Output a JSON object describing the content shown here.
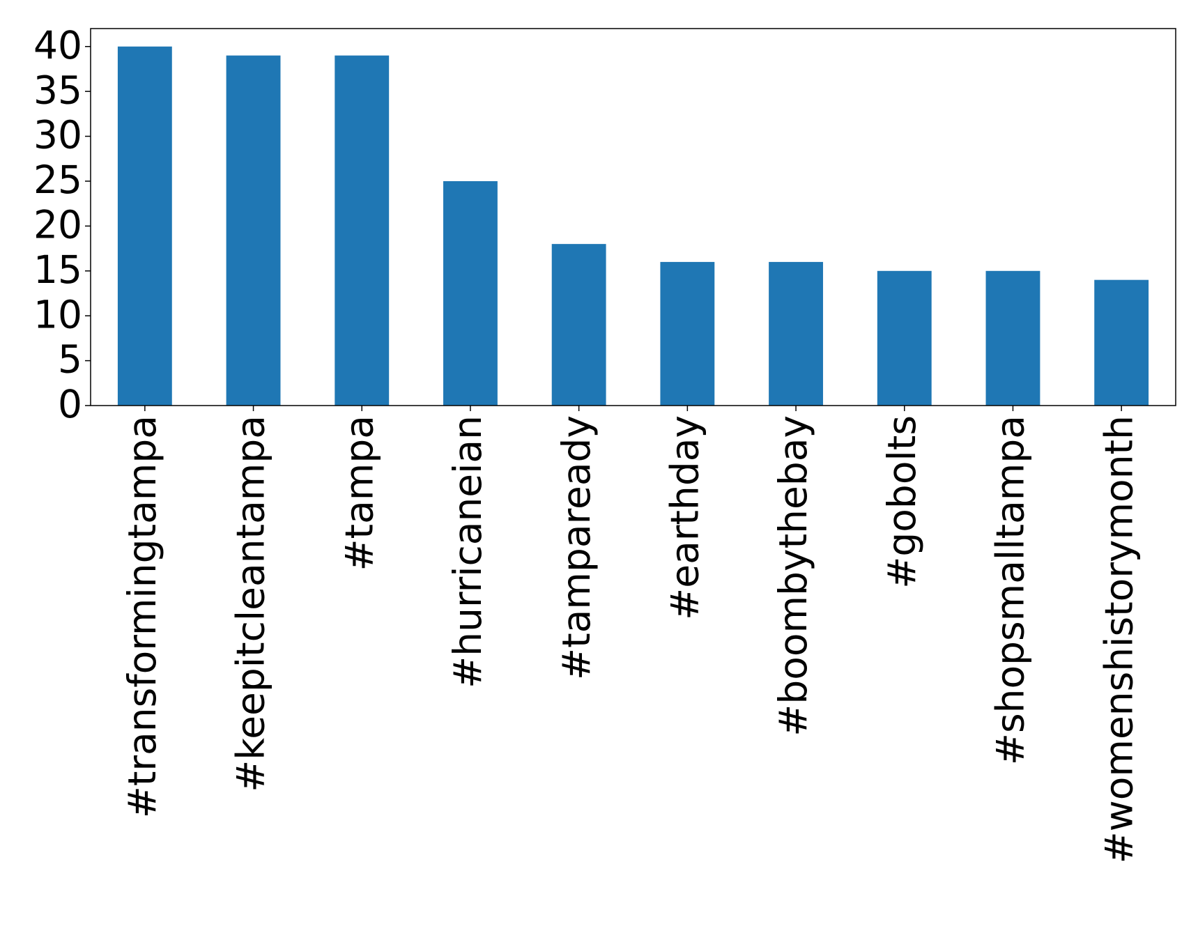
{
  "chart_data": {
    "type": "bar",
    "categories": [
      "#transformingtampa",
      "#keepitcleantampa",
      "#tampa",
      "#hurricaneian",
      "#tampaready",
      "#earthday",
      "#boombythebay",
      "#gobolts",
      "#shopsmalltampa",
      "#womenshistorymonth"
    ],
    "values": [
      40,
      39,
      39,
      25,
      18,
      16,
      16,
      15,
      15,
      14
    ],
    "color": "#1f77b4",
    "ylim": [
      0,
      42
    ],
    "yticks": [
      0,
      5,
      10,
      15,
      20,
      25,
      30,
      35,
      40
    ],
    "grid": false
  }
}
